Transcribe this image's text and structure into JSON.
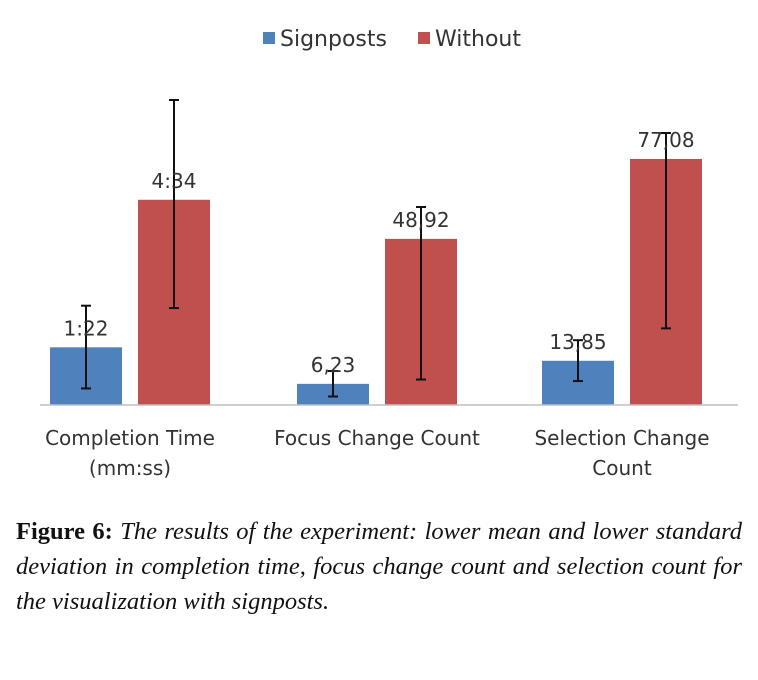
{
  "chart_data": {
    "type": "bar",
    "categories": [
      "Completion Time (mm:ss)",
      "Focus Change Count",
      "Selection Change Count"
    ],
    "category_lines": [
      [
        "Completion Time",
        "(mm:ss)"
      ],
      [
        "Focus Change Count"
      ],
      [
        "Selection Change",
        "Count"
      ]
    ],
    "series": [
      {
        "name": "Signposts",
        "color": "#4f81bd",
        "values": [
          1.22,
          6.23,
          13.85
        ],
        "labels": [
          "1:22",
          "6,23",
          "13,85"
        ],
        "error_low": [
          0.35,
          2.5,
          7.5
        ],
        "error_high": [
          2.1,
          10.0,
          20.3
        ]
      },
      {
        "name": "Without",
        "color": "#c0504d",
        "values": [
          4.34,
          48.92,
          77.08
        ],
        "labels": [
          "4:34",
          "48,92",
          "77,08"
        ],
        "error_low": [
          2.05,
          7.5,
          24.0
        ],
        "error_high": [
          6.45,
          58.3,
          85.2
        ]
      }
    ],
    "ylim": [
      0,
      100
    ],
    "gridlines": false,
    "legend": "top-center"
  },
  "caption": {
    "label": "Figure 6:",
    "text": "The results of the experiment: lower mean and lower standard deviation in completion time, focus change count and selection count for the visualization with signposts."
  }
}
